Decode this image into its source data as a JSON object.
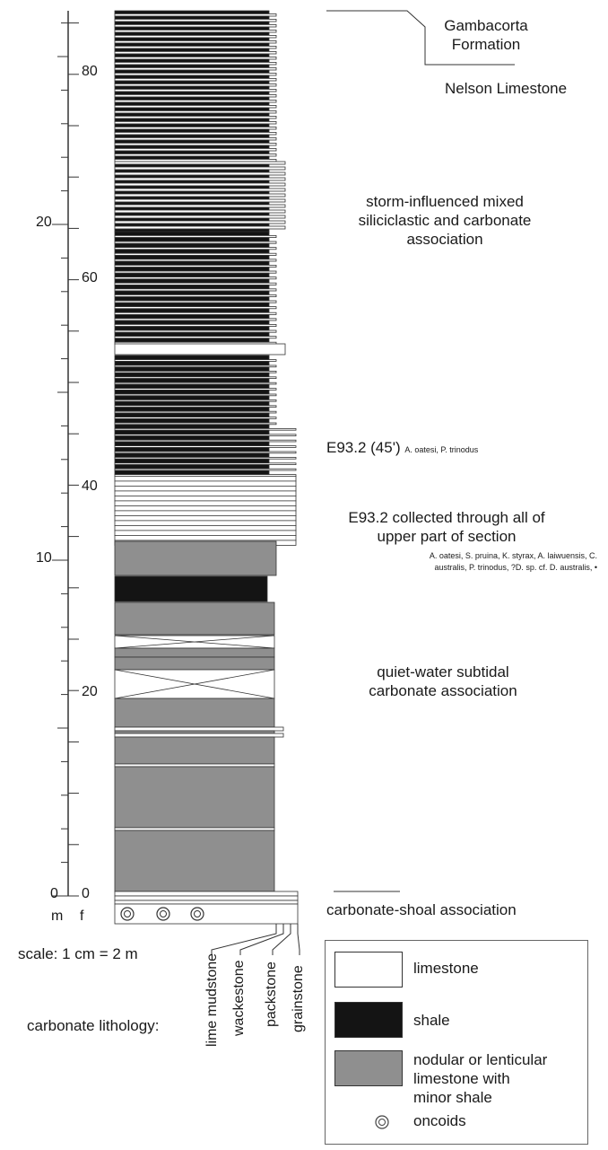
{
  "colors": {
    "limestone": "#ffffff",
    "shale": "#141414",
    "nodular": "#8f8f8f",
    "line": "#333333"
  },
  "axis": {
    "meters_ticks": [
      "0",
      "10",
      "20"
    ],
    "feet_ticks": [
      "0",
      "20",
      "40",
      "60",
      "80"
    ],
    "unit_m": "m",
    "unit_f": "f",
    "scale": "scale: 1 cm = 2 m"
  },
  "formations": {
    "upper": "Gambacorta\nFormation",
    "lower": "Nelson Limestone"
  },
  "associations": {
    "storm": "storm-influenced mixed\nsiliciclastic and carbonate\nassociation",
    "quiet": "quiet-water subtidal\ncarbonate association",
    "shoal": "carbonate-shoal association"
  },
  "samples": {
    "e45": "E93.2 (45')",
    "e45_taxa": "A. oatesi, P. trinodus",
    "upper": "E93.2 collected through all of\nupper part of section",
    "upper_taxa": "A. oatesi, S. pruina, K. styrax, A. laiwuensis, C.\naustralis, P. trinodus, ?D. sp. cf. D. australis, •"
  },
  "lithology": {
    "label": "carbonate lithology:",
    "textures": [
      "lime mudstone",
      "wackestone",
      "packstone",
      "grainstone"
    ]
  },
  "legend": {
    "limestone": "limestone",
    "shale": "shale",
    "nodular": "nodular or lenticular\nlimestone with\nminor shale",
    "oncoids": "oncoids"
  }
}
